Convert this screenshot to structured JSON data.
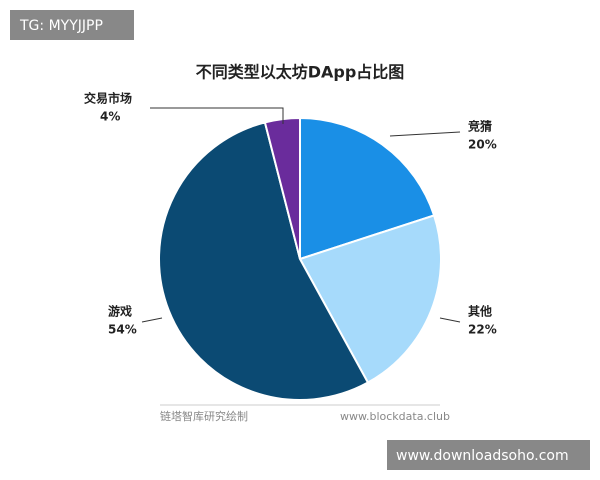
{
  "chart_data": {
    "type": "pie",
    "title": "不同类型以太坊DApp占比图",
    "categories": [
      "竞猜",
      "其他",
      "游戏",
      "交易市场"
    ],
    "values": [
      20,
      22,
      54,
      4
    ],
    "value_labels": [
      "20%",
      "22%",
      "54%",
      "4%"
    ],
    "colors": [
      "#1a8fe6",
      "#a6dafb",
      "#0b4a73",
      "#6a2c9c"
    ],
    "source": "链塔智库研究绘制",
    "source_url": "www.blockdata.club"
  },
  "overlays": [
    "TG: MYYJJPP",
    "www.downloadsoho.com"
  ]
}
